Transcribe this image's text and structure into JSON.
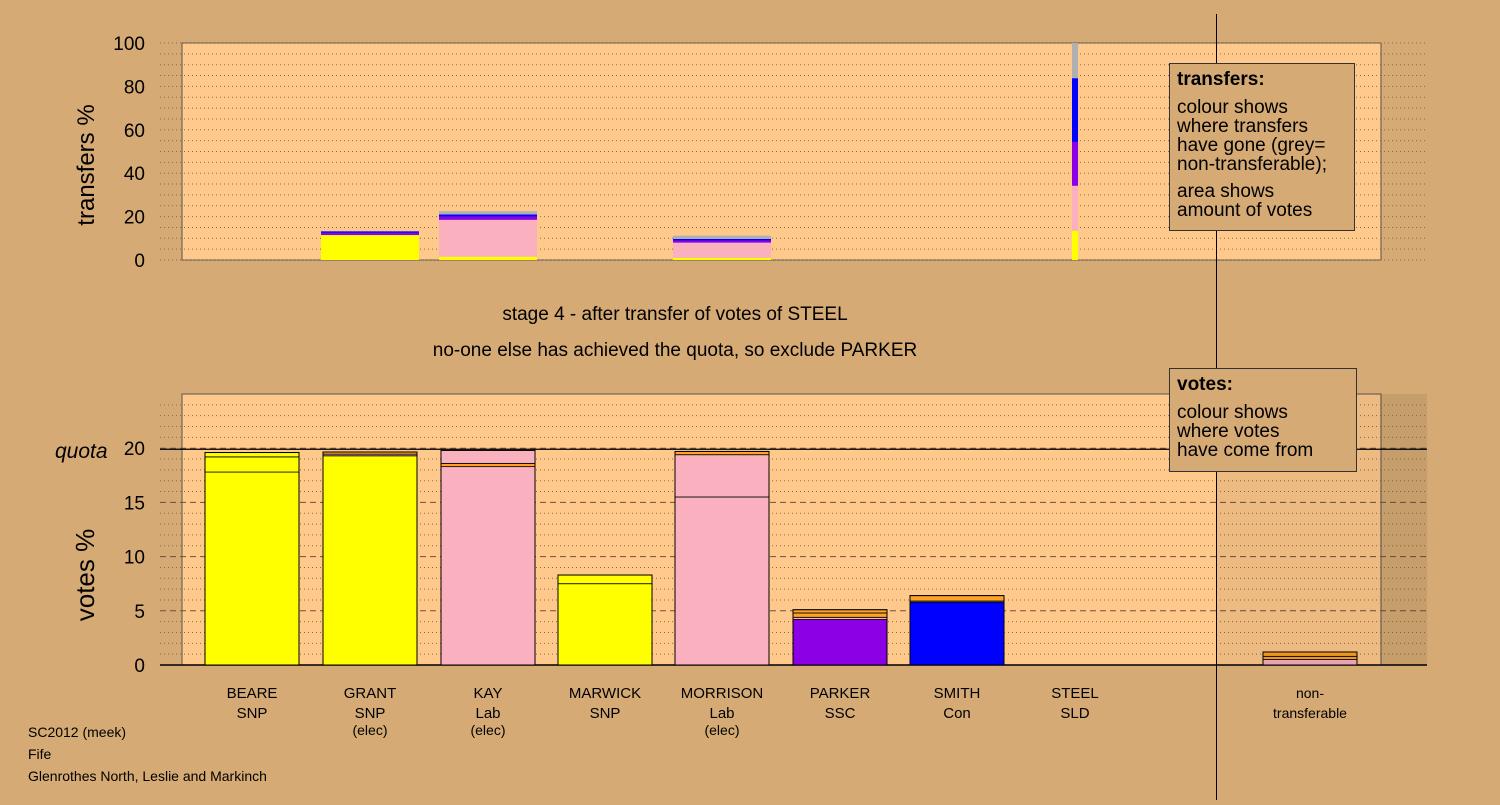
{
  "messages": {
    "stage": "stage 4 - after transfer of votes of STEEL",
    "decision": "no-one else has achieved the quota, so exclude PARKER"
  },
  "legend_transfers": {
    "title": "transfers:",
    "p1_lines": [
      "colour shows",
      "where transfers",
      "have gone (grey=",
      "non-transferable);"
    ],
    "p2_lines": [
      "area shows",
      "amount of votes"
    ]
  },
  "legend_votes": {
    "title": "votes:",
    "lines": [
      "colour shows",
      "where votes",
      "have come from"
    ]
  },
  "footer": {
    "election": "SC2012 (meek)",
    "council": "Fife",
    "ward": "Glenrothes North, Leslie and Markinch"
  },
  "colors": {
    "background": "#d5aa74",
    "plot": "#ffc98c",
    "SNP": "#ffff00",
    "Lab": "#fbb0c0",
    "SSC": "#8c00e6",
    "Con": "#0000ff",
    "SLD": "#ffa326",
    "nontransferable": "#b0b0b0"
  },
  "chart_data": [
    {
      "type": "bar",
      "name": "transfers",
      "ylabel": "transfers %",
      "ylim": [
        0,
        100
      ],
      "yticks": [
        0,
        20,
        40,
        60,
        80,
        100
      ],
      "grid": "dotted",
      "transferring_candidate": "STEEL",
      "breakdown": [
        {
          "to": "SNP",
          "value": 13.5
        },
        {
          "to": "Lab",
          "value": 20.7
        },
        {
          "to": "SSC",
          "value": 20.2
        },
        {
          "to": "Con",
          "value": 29.4
        },
        {
          "to": "nontransferable",
          "value": 16.2
        }
      ],
      "received": [
        {
          "candidate": "GRANT",
          "segments": [
            {
              "from": "SNP",
              "value": 11.5
            },
            {
              "from": "SSC",
              "value": 1.0
            },
            {
              "from": "Con",
              "value": 0.7
            }
          ]
        },
        {
          "candidate": "KAY",
          "segments": [
            {
              "from": "SNP",
              "value": 1.5
            },
            {
              "from": "Lab",
              "value": 17.0
            },
            {
              "from": "SSC",
              "value": 1.5
            },
            {
              "from": "Con",
              "value": 1.0
            },
            {
              "from": "nontransferable",
              "value": 1.5
            }
          ]
        },
        {
          "candidate": "MORRISON",
          "segments": [
            {
              "from": "SNP",
              "value": 1.0
            },
            {
              "from": "Lab",
              "value": 7.0
            },
            {
              "from": "SSC",
              "value": 1.0
            },
            {
              "from": "Con",
              "value": 0.7
            },
            {
              "from": "nontransferable",
              "value": 1.5
            }
          ]
        }
      ]
    },
    {
      "type": "bar",
      "name": "votes",
      "ylabel": "votes %",
      "ylim": [
        0,
        25
      ],
      "yticks": [
        0,
        5,
        10,
        15,
        20
      ],
      "quota": 19.9,
      "quota_label": "quota",
      "grid": "dotted, dashed at 5",
      "candidates": [
        {
          "name": "BEARE",
          "party": "SNP",
          "status": "",
          "segments": [
            {
              "from": "SNP",
              "value": 17.8
            },
            {
              "from": "SNP",
              "value": 1.4
            },
            {
              "from": "SNP",
              "value": 0.4
            }
          ]
        },
        {
          "name": "GRANT",
          "party": "SNP",
          "status": "(elec)",
          "segments": [
            {
              "from": "SNP",
              "value": 19.3
            },
            {
              "from": "Lab",
              "value": 0.15
            },
            {
              "from": "SLD",
              "value": 0.2
            }
          ]
        },
        {
          "name": "KAY",
          "party": "Lab",
          "status": "(elec)",
          "segments": [
            {
              "from": "Lab",
              "value": 18.3
            },
            {
              "from": "SLD",
              "value": 0.3
            },
            {
              "from": "Lab",
              "value": 1.2
            }
          ]
        },
        {
          "name": "MARWICK",
          "party": "SNP",
          "status": "",
          "segments": [
            {
              "from": "SNP",
              "value": 7.5
            },
            {
              "from": "SNP",
              "value": 0.8
            }
          ]
        },
        {
          "name": "MORRISON",
          "party": "Lab",
          "status": "(elec)",
          "segments": [
            {
              "from": "Lab",
              "value": 15.5
            },
            {
              "from": "Lab",
              "value": 3.9
            },
            {
              "from": "SLD",
              "value": 0.3
            }
          ]
        },
        {
          "name": "PARKER",
          "party": "SSC",
          "status": "",
          "segments": [
            {
              "from": "SSC",
              "value": 4.2
            },
            {
              "from": "Lab",
              "value": 0.2
            },
            {
              "from": "SLD",
              "value": 0.4
            },
            {
              "from": "SLD",
              "value": 0.3
            }
          ]
        },
        {
          "name": "SMITH",
          "party": "Con",
          "status": "",
          "segments": [
            {
              "from": "Con",
              "value": 5.8
            },
            {
              "from": "SNP",
              "value": 0.1
            },
            {
              "from": "SLD",
              "value": 0.5
            }
          ]
        },
        {
          "name": "STEEL",
          "party": "SLD",
          "status": "",
          "segments": []
        }
      ],
      "nontransferable": {
        "label_lines": [
          "non-",
          "transferable"
        ],
        "segments": [
          {
            "from": "Lab",
            "value": 0.5
          },
          {
            "from": "SLD",
            "value": 0.3
          },
          {
            "from": "SLD",
            "value": 0.4
          }
        ]
      }
    }
  ]
}
